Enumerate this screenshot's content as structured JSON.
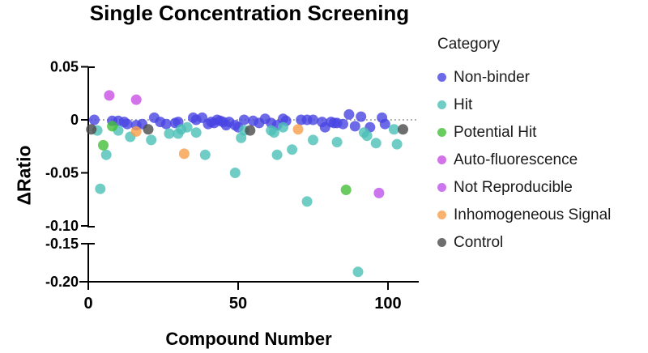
{
  "legend": {
    "header": "Category"
  },
  "chart_data": {
    "type": "scatter",
    "title": "Single Concentration Screening",
    "xlabel": "Compound Number",
    "ylabel": "ΔRatio",
    "x_ticks": [
      {
        "v": 0,
        "label": "0"
      },
      {
        "v": 50,
        "label": "50"
      },
      {
        "v": 100,
        "label": "100"
      }
    ],
    "y_ticks": [
      {
        "v": 0.05,
        "label": "0.05"
      },
      {
        "v": 0,
        "label": "0"
      },
      {
        "v": -0.05,
        "label": "-0.05"
      },
      {
        "v": -0.1,
        "label": "-0.10"
      },
      {
        "v": -0.15,
        "label": "-0.15"
      },
      {
        "v": -0.2,
        "label": "-0.20"
      }
    ],
    "axis_break": {
      "between": [
        -0.1,
        -0.15
      ]
    },
    "x_range": [
      0,
      110
    ],
    "zero_line": {
      "y": 0,
      "style": "dotted",
      "color": "#8a8a8a"
    },
    "point_opacity": 0.8,
    "series": [
      {
        "name": "Non-binder",
        "color": "#4945E2",
        "points": [
          [
            2,
            0.0
          ],
          [
            8,
            -0.001
          ],
          [
            10,
            -0.001
          ],
          [
            12,
            -0.002
          ],
          [
            13,
            -0.004
          ],
          [
            16,
            -0.005
          ],
          [
            18,
            -0.004
          ],
          [
            22,
            0.002
          ],
          [
            24,
            -0.002
          ],
          [
            26,
            -0.004
          ],
          [
            29,
            -0.003
          ],
          [
            30,
            -0.002
          ],
          [
            35,
            0.002
          ],
          [
            36,
            0.0
          ],
          [
            38,
            0.002
          ],
          [
            40,
            -0.004
          ],
          [
            41,
            -0.002
          ],
          [
            42,
            -0.003
          ],
          [
            43,
            0.0
          ],
          [
            44,
            -0.001
          ],
          [
            45,
            -0.002
          ],
          [
            46,
            -0.005
          ],
          [
            47,
            -0.002
          ],
          [
            49,
            -0.005
          ],
          [
            50,
            -0.007
          ],
          [
            52,
            0.0
          ],
          [
            55,
            -0.001
          ],
          [
            57,
            -0.003
          ],
          [
            59,
            0.001
          ],
          [
            61,
            -0.003
          ],
          [
            63,
            -0.005
          ],
          [
            65,
            0.001
          ],
          [
            66,
            -0.001
          ],
          [
            71,
            0.0
          ],
          [
            73,
            0.0
          ],
          [
            75,
            0.0
          ],
          [
            78,
            -0.002
          ],
          [
            79,
            -0.007
          ],
          [
            81,
            -0.002
          ],
          [
            82,
            -0.003
          ],
          [
            83,
            -0.003
          ],
          [
            85,
            -0.004
          ],
          [
            87,
            0.005
          ],
          [
            89,
            -0.006
          ],
          [
            91,
            0.003
          ],
          [
            94,
            -0.007
          ],
          [
            98,
            0.002
          ],
          [
            99,
            -0.004
          ]
        ]
      },
      {
        "name": "Hit",
        "color": "#4CC0B6",
        "points": [
          [
            3,
            -0.01
          ],
          [
            4,
            -0.065
          ],
          [
            6,
            -0.033
          ],
          [
            10,
            -0.01
          ],
          [
            14,
            -0.016
          ],
          [
            21,
            -0.019
          ],
          [
            27,
            -0.013
          ],
          [
            30,
            -0.013
          ],
          [
            31,
            -0.009
          ],
          [
            33,
            -0.007
          ],
          [
            36,
            -0.012
          ],
          [
            39,
            -0.033
          ],
          [
            49,
            -0.05
          ],
          [
            51,
            -0.017
          ],
          [
            52,
            -0.01
          ],
          [
            61,
            -0.01
          ],
          [
            62,
            -0.012
          ],
          [
            63,
            -0.033
          ],
          [
            65,
            -0.007
          ],
          [
            68,
            -0.028
          ],
          [
            73,
            -0.077
          ],
          [
            75,
            -0.019
          ],
          [
            83,
            -0.021
          ],
          [
            90,
            -0.187
          ],
          [
            92,
            -0.012
          ],
          [
            93,
            -0.015
          ],
          [
            96,
            -0.022
          ],
          [
            102,
            -0.009
          ],
          [
            103,
            -0.023
          ]
        ]
      },
      {
        "name": "Potential Hit",
        "color": "#44BE38",
        "points": [
          [
            5,
            -0.024
          ],
          [
            8,
            -0.006
          ],
          [
            86,
            -0.066
          ]
        ]
      },
      {
        "name": "Auto-fluorescence",
        "color": "#C84FE4",
        "points": [
          [
            7,
            0.023
          ],
          [
            16,
            0.019
          ]
        ]
      },
      {
        "name": "Not Reproducible",
        "color": "#BE53EA",
        "points": [
          [
            97,
            -0.069
          ]
        ]
      },
      {
        "name": "Inhomogeneous Signal",
        "color": "#F79E4A",
        "points": [
          [
            16,
            -0.011
          ],
          [
            32,
            -0.032
          ],
          [
            70,
            -0.009
          ]
        ]
      },
      {
        "name": "Control",
        "color": "#4A4A4A",
        "points": [
          [
            1,
            -0.009
          ],
          [
            20,
            -0.009
          ],
          [
            54,
            -0.01
          ],
          [
            105,
            -0.009
          ]
        ]
      }
    ]
  }
}
